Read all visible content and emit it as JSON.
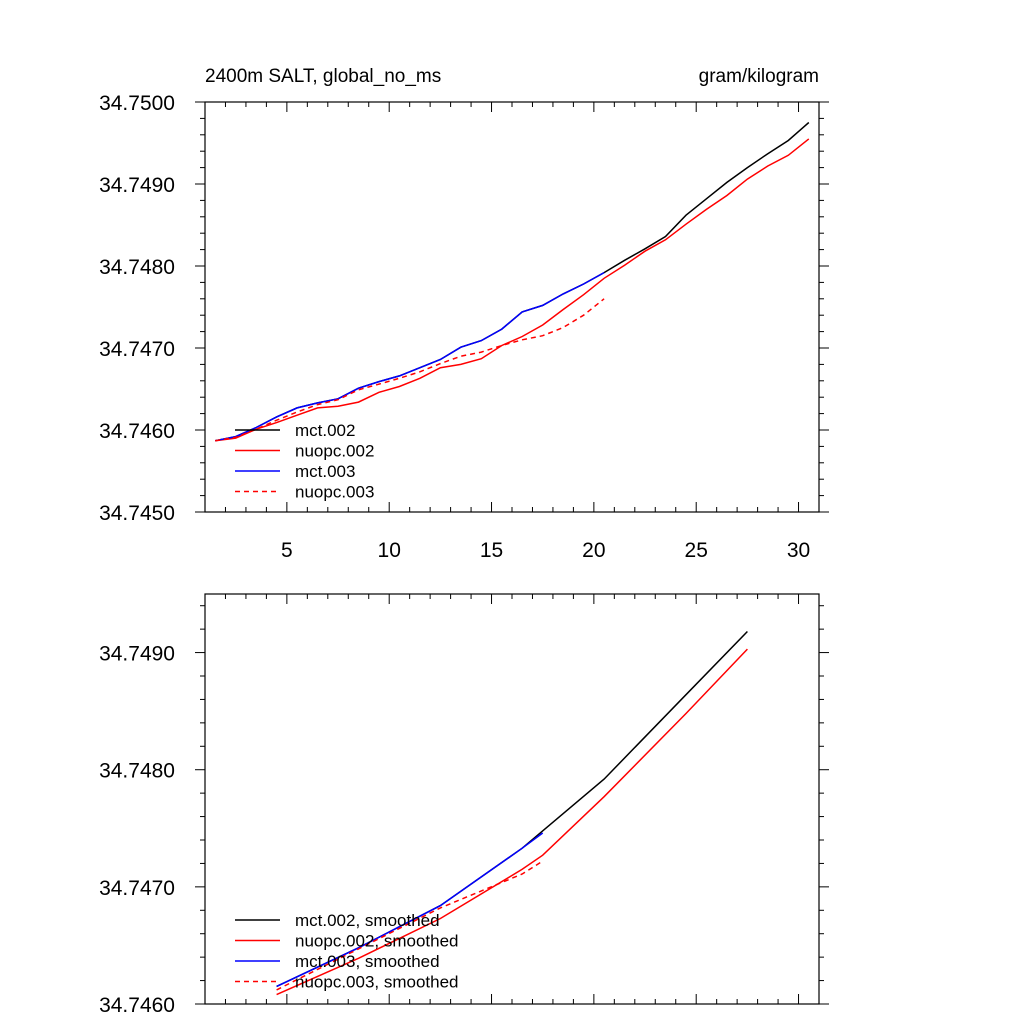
{
  "chart_data": [
    {
      "type": "line",
      "title_left": "2400m SALT, global_no_ms",
      "title_right": "gram/kilogram",
      "xlabel": "",
      "ylabel": "",
      "xlim": [
        1,
        31
      ],
      "ylim": [
        34.745,
        34.75
      ],
      "xticks": [
        5,
        10,
        15,
        20,
        25,
        30
      ],
      "xtick_labels": [
        "5",
        "10",
        "15",
        "20",
        "25",
        "30"
      ],
      "yticks": [
        34.745,
        34.746,
        34.747,
        34.748,
        34.749,
        34.75
      ],
      "ytick_labels": [
        "34.7450",
        "34.7460",
        "34.7470",
        "34.7480",
        "34.7490",
        "34.7500"
      ],
      "legend_position": "bottom-left",
      "series": [
        {
          "name": "mct.002",
          "color": "#000000",
          "dash": "solid",
          "x": [
            1.5,
            2.5,
            3.5,
            4.5,
            5.5,
            6.5,
            7.5,
            8.5,
            9.5,
            10.5,
            11.5,
            12.5,
            13.5,
            14.5,
            15.5,
            16.5,
            17.5,
            18.5,
            19.5,
            20.5,
            21.5,
            22.5,
            23.5,
            24.5,
            25.5,
            26.5,
            27.5,
            28.5,
            29.5,
            30.5
          ],
          "values": [
            34.74587,
            34.74592,
            34.74603,
            34.74616,
            34.74627,
            34.74633,
            34.74638,
            34.74651,
            34.74659,
            34.74666,
            34.74676,
            34.74686,
            34.74701,
            34.74709,
            34.74723,
            34.74744,
            34.74752,
            34.74766,
            34.74778,
            34.74792,
            34.74807,
            34.74821,
            34.74836,
            34.74862,
            34.74882,
            34.74902,
            34.7492,
            34.74937,
            34.74953,
            34.74975
          ]
        },
        {
          "name": "nuopc.002",
          "color": "#ff0000",
          "dash": "solid",
          "x": [
            1.5,
            2.5,
            3.5,
            4.5,
            5.5,
            6.5,
            7.5,
            8.5,
            9.5,
            10.5,
            11.5,
            12.5,
            13.5,
            14.5,
            15.5,
            16.5,
            17.5,
            18.5,
            19.5,
            20.5,
            21.5,
            22.5,
            23.5,
            24.5,
            25.5,
            26.5,
            27.5,
            28.5,
            29.5,
            30.5
          ],
          "values": [
            34.74587,
            34.7459,
            34.74601,
            34.74609,
            34.74618,
            34.74627,
            34.74629,
            34.74634,
            34.74646,
            34.74653,
            34.74663,
            34.74676,
            34.7468,
            34.74687,
            34.74703,
            34.74714,
            34.74728,
            34.74747,
            34.74765,
            34.74785,
            34.74801,
            34.74818,
            34.74832,
            34.74851,
            34.74869,
            34.74886,
            34.74906,
            34.74922,
            34.74935,
            34.74955
          ]
        },
        {
          "name": "mct.003",
          "color": "#0000ff",
          "dash": "solid",
          "x": [
            1.5,
            2.5,
            3.5,
            4.5,
            5.5,
            6.5,
            7.5,
            8.5,
            9.5,
            10.5,
            11.5,
            12.5,
            13.5,
            14.5,
            15.5,
            16.5,
            17.5,
            18.5,
            19.5,
            20.5
          ],
          "values": [
            34.74587,
            34.74592,
            34.74603,
            34.74616,
            34.74627,
            34.74633,
            34.74638,
            34.74651,
            34.74659,
            34.74666,
            34.74676,
            34.74686,
            34.74701,
            34.74709,
            34.74723,
            34.74744,
            34.74752,
            34.74766,
            34.74778,
            34.74792
          ]
        },
        {
          "name": "nuopc.003",
          "color": "#ff0000",
          "dash": "dashed",
          "x": [
            1.5,
            2.5,
            3.5,
            4.5,
            5.5,
            6.5,
            7.5,
            8.5,
            9.5,
            10.5,
            11.5,
            12.5,
            13.5,
            14.5,
            15.5,
            16.5,
            17.5,
            18.5,
            19.5,
            20.5
          ],
          "values": [
            34.74587,
            34.74591,
            34.74601,
            34.74612,
            34.74622,
            34.74631,
            34.74637,
            34.74649,
            34.74656,
            34.74663,
            34.74671,
            34.74681,
            34.7469,
            34.74695,
            34.74703,
            34.7471,
            34.74715,
            34.74725,
            34.7474,
            34.7476
          ]
        }
      ]
    },
    {
      "type": "line",
      "title_left": "",
      "title_right": "",
      "xlabel": "",
      "ylabel": "",
      "xlim": [
        1,
        31
      ],
      "ylim": [
        34.746,
        34.7495
      ],
      "xticks": [
        5,
        10,
        15,
        20,
        25,
        30
      ],
      "xtick_labels": [],
      "yticks": [
        34.746,
        34.747,
        34.748,
        34.749
      ],
      "ytick_labels": [
        "34.7460",
        "34.7470",
        "34.7480",
        "34.7490"
      ],
      "legend_position": "bottom-left",
      "series": [
        {
          "name": "mct.002, smoothed",
          "color": "#000000",
          "dash": "solid",
          "x": [
            4.5,
            8.5,
            12.5,
            16.5,
            20.5,
            24.5,
            27.5
          ],
          "values": [
            34.74615,
            34.74648,
            34.74684,
            34.74733,
            34.74792,
            34.74864,
            34.74918
          ]
        },
        {
          "name": "nuopc.002, smoothed",
          "color": "#ff0000",
          "dash": "solid",
          "x": [
            4.5,
            8.5,
            12.5,
            16.5,
            17.5,
            20.5,
            24.5,
            27.5
          ],
          "values": [
            34.74608,
            34.74639,
            34.74673,
            34.74715,
            34.74727,
            34.74777,
            34.74848,
            34.74903
          ]
        },
        {
          "name": "mct.003, smoothed",
          "color": "#0000ff",
          "dash": "solid",
          "x": [
            4.5,
            8.5,
            12.5,
            16.5,
            17.5
          ],
          "values": [
            34.74615,
            34.74648,
            34.74684,
            34.74733,
            34.74746
          ]
        },
        {
          "name": "nuopc.003, smoothed",
          "color": "#ff0000",
          "dash": "dashed",
          "x": [
            4.5,
            8.5,
            12.5,
            16.5,
            17.5
          ],
          "values": [
            34.74612,
            34.74647,
            34.74682,
            34.74711,
            34.74722
          ]
        }
      ]
    }
  ]
}
